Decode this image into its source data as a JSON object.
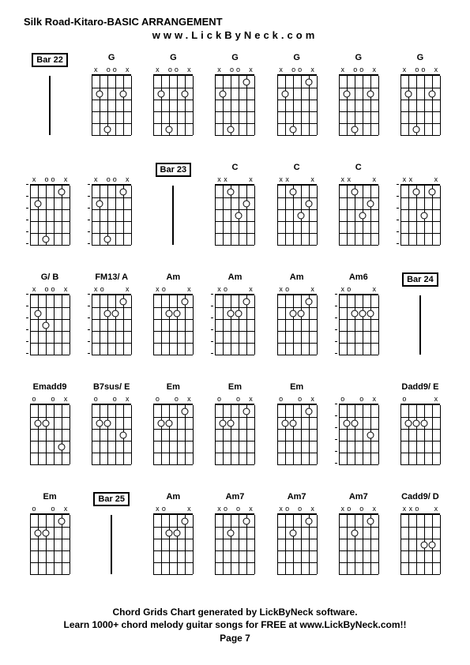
{
  "title": "Silk Road-Kitaro-BASIC ARRANGEMENT",
  "subtitle": "www.LickByNeck.com",
  "footer_line1": "Chord Grids Chart generated by LickByNeck software.",
  "footer_line2": "Learn 1000+ chord melody guitar songs for FREE at www.LickByNeck.com!!",
  "footer_line3": "Page 7",
  "rows": [
    [
      {
        "type": "bar",
        "label": "Bar 22"
      },
      {
        "type": "chord",
        "label": "G",
        "markers": [
          "x",
          "",
          "o",
          "o",
          "",
          "x"
        ],
        "dots": [
          [
            1,
            2
          ],
          [
            4,
            3
          ],
          [
            1,
            5
          ]
        ]
      },
      {
        "type": "chord",
        "label": "G",
        "markers": [
          "x",
          "",
          "o",
          "o",
          "",
          "x"
        ],
        "dots": [
          [
            1,
            2
          ],
          [
            4,
            3
          ],
          [
            1,
            5
          ]
        ]
      },
      {
        "type": "chord",
        "label": "G",
        "markers": [
          "x",
          "",
          "o",
          "o",
          "",
          "x"
        ],
        "dots": [
          [
            1,
            2
          ],
          [
            4,
            3
          ],
          [
            0,
            5
          ]
        ]
      },
      {
        "type": "chord",
        "label": "G",
        "markers": [
          "x",
          "",
          "o",
          "o",
          "",
          "x"
        ],
        "dots": [
          [
            1,
            2
          ],
          [
            4,
            3
          ],
          [
            0,
            5
          ]
        ]
      },
      {
        "type": "chord",
        "label": "G",
        "markers": [
          "x",
          "",
          "o",
          "o",
          "",
          "x"
        ],
        "dots": [
          [
            1,
            2
          ],
          [
            4,
            3
          ],
          [
            1,
            5
          ]
        ]
      },
      {
        "type": "chord",
        "label": "G",
        "markers": [
          "x",
          "",
          "o",
          "o",
          "",
          "x"
        ],
        "dots": [
          [
            1,
            2
          ],
          [
            4,
            3
          ],
          [
            1,
            5
          ]
        ]
      }
    ],
    [
      {
        "type": "chord",
        "label": "",
        "markers": [
          "x",
          "",
          "o",
          "o",
          "",
          "x"
        ],
        "dots": [
          [
            1,
            2
          ],
          [
            4,
            3
          ],
          [
            0,
            5
          ]
        ],
        "ticks": true
      },
      {
        "type": "chord",
        "label": "",
        "markers": [
          "x",
          "",
          "o",
          "o",
          "",
          "x"
        ],
        "dots": [
          [
            1,
            2
          ],
          [
            4,
            3
          ],
          [
            0,
            5
          ]
        ],
        "ticks": true
      },
      {
        "type": "bar",
        "label": "Bar 23"
      },
      {
        "type": "chord",
        "label": "C",
        "markers": [
          "x",
          "x",
          "",
          "",
          "",
          "x"
        ],
        "dots": [
          [
            0,
            3
          ],
          [
            2,
            4
          ],
          [
            1,
            5
          ]
        ]
      },
      {
        "type": "chord",
        "label": "C",
        "markers": [
          "x",
          "x",
          "",
          "",
          "",
          "x"
        ],
        "dots": [
          [
            0,
            3
          ],
          [
            2,
            4
          ],
          [
            1,
            5
          ]
        ]
      },
      {
        "type": "chord",
        "label": "C",
        "markers": [
          "x",
          "x",
          "",
          "",
          "",
          "x"
        ],
        "dots": [
          [
            0,
            3
          ],
          [
            2,
            4
          ],
          [
            1,
            5
          ]
        ]
      },
      {
        "type": "chord",
        "label": "",
        "markers": [
          "x",
          "x",
          "",
          "",
          "",
          "x"
        ],
        "dots": [
          [
            0,
            3
          ],
          [
            2,
            4
          ],
          [
            0,
            5
          ]
        ],
        "ticks": true
      }
    ],
    [
      {
        "type": "chord",
        "label": "G/ B",
        "markers": [
          "x",
          "",
          "o",
          "o",
          "",
          "x"
        ],
        "dots": [
          [
            1,
            2
          ],
          [
            2,
            3
          ]
        ],
        "ticks": true
      },
      {
        "type": "chord",
        "label": "FM13/ A",
        "markers": [
          "x",
          "o",
          "",
          "",
          "",
          "x"
        ],
        "dots": [
          [
            1,
            3
          ],
          [
            1,
            4
          ],
          [
            0,
            5
          ]
        ],
        "ticks": true
      },
      {
        "type": "chord",
        "label": "Am",
        "markers": [
          "x",
          "o",
          "",
          "",
          "",
          "x"
        ],
        "dots": [
          [
            1,
            3
          ],
          [
            1,
            4
          ],
          [
            0,
            5
          ]
        ]
      },
      {
        "type": "chord",
        "label": "Am",
        "markers": [
          "x",
          "o",
          "",
          "",
          "",
          "x"
        ],
        "dots": [
          [
            1,
            3
          ],
          [
            1,
            4
          ],
          [
            0,
            5
          ]
        ],
        "ticks": true
      },
      {
        "type": "chord",
        "label": "Am",
        "markers": [
          "x",
          "o",
          "",
          "",
          "",
          "x"
        ],
        "dots": [
          [
            1,
            3
          ],
          [
            1,
            4
          ],
          [
            0,
            5
          ]
        ]
      },
      {
        "type": "chord",
        "label": "Am6",
        "markers": [
          "x",
          "o",
          "",
          "",
          "",
          "x"
        ],
        "dots": [
          [
            1,
            3
          ],
          [
            1,
            4
          ],
          [
            1,
            5
          ]
        ],
        "ticks": true
      },
      {
        "type": "bar",
        "label": "Bar 24"
      }
    ],
    [
      {
        "type": "chord",
        "label": "Emadd9",
        "markers": [
          "o",
          "",
          "",
          "o",
          "",
          "x"
        ],
        "dots": [
          [
            1,
            2
          ],
          [
            1,
            3
          ],
          [
            3,
            5
          ]
        ]
      },
      {
        "type": "chord",
        "label": "B7sus/ E",
        "markers": [
          "o",
          "",
          "",
          "o",
          "",
          "x"
        ],
        "dots": [
          [
            1,
            2
          ],
          [
            1,
            3
          ],
          [
            2,
            5
          ]
        ]
      },
      {
        "type": "chord",
        "label": "Em",
        "markers": [
          "o",
          "",
          "",
          "o",
          "",
          "x"
        ],
        "dots": [
          [
            1,
            2
          ],
          [
            1,
            3
          ],
          [
            0,
            5
          ]
        ]
      },
      {
        "type": "chord",
        "label": "Em",
        "markers": [
          "o",
          "",
          "",
          "o",
          "",
          "x"
        ],
        "dots": [
          [
            1,
            2
          ],
          [
            1,
            3
          ],
          [
            0,
            5
          ]
        ]
      },
      {
        "type": "chord",
        "label": "Em",
        "markers": [
          "o",
          "",
          "",
          "o",
          "",
          "x"
        ],
        "dots": [
          [
            1,
            2
          ],
          [
            1,
            3
          ],
          [
            0,
            5
          ]
        ]
      },
      {
        "type": "chord",
        "label": "",
        "markers": [
          "o",
          "",
          "",
          "o",
          "",
          "x"
        ],
        "dots": [
          [
            1,
            2
          ],
          [
            1,
            3
          ],
          [
            2,
            5
          ]
        ],
        "ticks": true
      },
      {
        "type": "chord",
        "label": "Dadd9/ E",
        "markers": [
          "o",
          "",
          "",
          "",
          "",
          "x"
        ],
        "dots": [
          [
            1,
            2
          ],
          [
            1,
            3
          ],
          [
            1,
            4
          ]
        ]
      }
    ],
    [
      {
        "type": "chord",
        "label": "Em",
        "markers": [
          "o",
          "",
          "",
          "o",
          "",
          "x"
        ],
        "dots": [
          [
            1,
            2
          ],
          [
            1,
            3
          ],
          [
            0,
            5
          ]
        ]
      },
      {
        "type": "bar",
        "label": "Bar 25"
      },
      {
        "type": "chord",
        "label": "Am",
        "markers": [
          "x",
          "o",
          "",
          "",
          "",
          "x"
        ],
        "dots": [
          [
            1,
            3
          ],
          [
            1,
            4
          ],
          [
            0,
            5
          ]
        ]
      },
      {
        "type": "chord",
        "label": "Am7",
        "markers": [
          "x",
          "o",
          "",
          "o",
          "",
          "x"
        ],
        "dots": [
          [
            1,
            3
          ],
          [
            0,
            5
          ]
        ]
      },
      {
        "type": "chord",
        "label": "Am7",
        "markers": [
          "x",
          "o",
          "",
          "o",
          "",
          "x"
        ],
        "dots": [
          [
            1,
            3
          ],
          [
            0,
            5
          ]
        ]
      },
      {
        "type": "chord",
        "label": "Am7",
        "markers": [
          "x",
          "o",
          "",
          "o",
          "",
          "x"
        ],
        "dots": [
          [
            1,
            3
          ],
          [
            0,
            5
          ]
        ]
      },
      {
        "type": "chord",
        "label": "Cadd9/ D",
        "markers": [
          "x",
          "x",
          "o",
          "",
          "",
          "x"
        ],
        "dots": [
          [
            2,
            4
          ],
          [
            2,
            5
          ]
        ]
      }
    ]
  ],
  "styling": {
    "frets": 5,
    "strings": 6,
    "fret_height": 15,
    "string_spacing": 10,
    "dot_size": 7,
    "colors": {
      "background": "#ffffff",
      "lines": "#000000",
      "text": "#000000"
    }
  }
}
